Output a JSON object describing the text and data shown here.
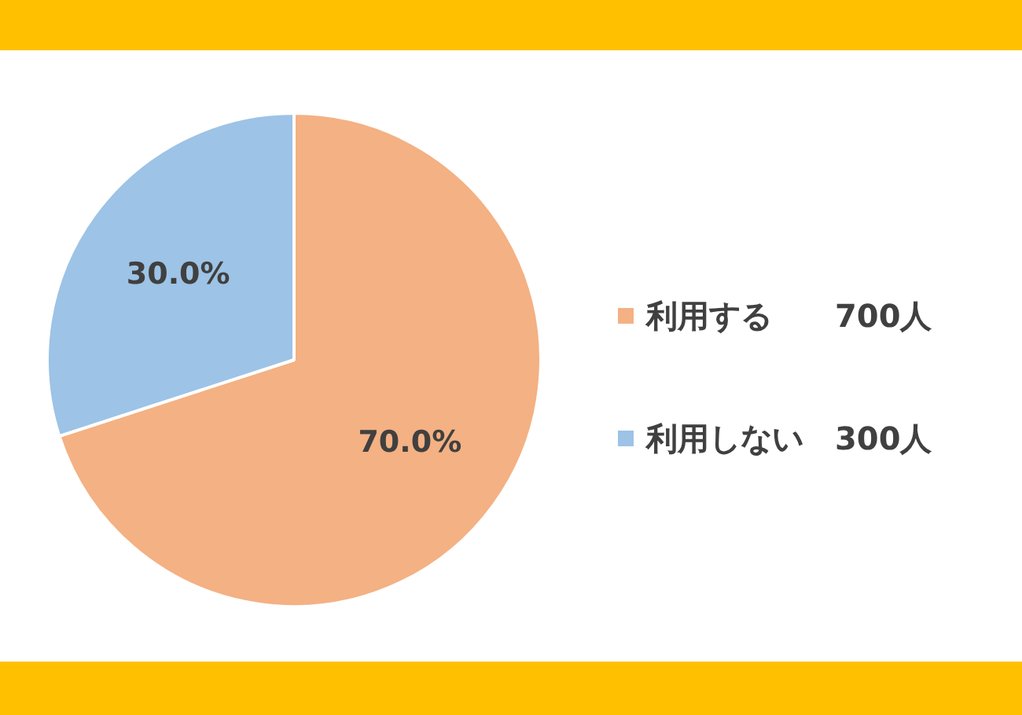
{
  "chart_data": {
    "type": "pie",
    "categories": [
      "利用する　　700人",
      "利用しない　300人"
    ],
    "values": [
      70.0,
      30.0
    ],
    "colors": [
      "#f4b183",
      "#9dc3e6"
    ],
    "value_labels": [
      "70.0%",
      "30.0%"
    ],
    "legend": "right"
  }
}
